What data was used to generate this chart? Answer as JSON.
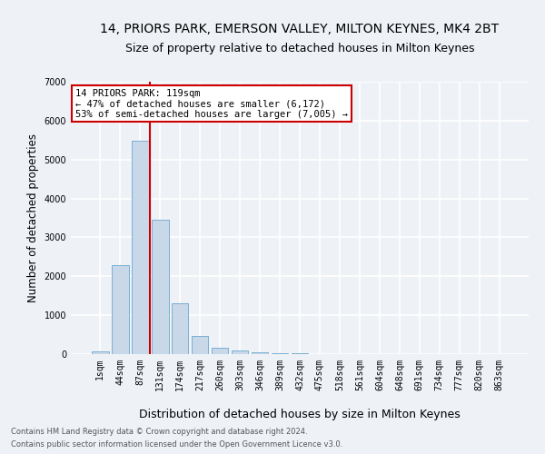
{
  "title": "14, PRIORS PARK, EMERSON VALLEY, MILTON KEYNES, MK4 2BT",
  "subtitle": "Size of property relative to detached houses in Milton Keynes",
  "xlabel": "Distribution of detached houses by size in Milton Keynes",
  "ylabel": "Number of detached properties",
  "bar_color": "#c8d8e8",
  "bar_edge_color": "#7aafd4",
  "categories": [
    "1sqm",
    "44sqm",
    "87sqm",
    "131sqm",
    "174sqm",
    "217sqm",
    "260sqm",
    "303sqm",
    "346sqm",
    "389sqm",
    "432sqm",
    "475sqm",
    "518sqm",
    "561sqm",
    "604sqm",
    "648sqm",
    "691sqm",
    "734sqm",
    "777sqm",
    "820sqm",
    "863sqm"
  ],
  "values": [
    80,
    2280,
    5480,
    3450,
    1310,
    470,
    160,
    90,
    55,
    35,
    20,
    0,
    0,
    0,
    0,
    0,
    0,
    0,
    0,
    0,
    0
  ],
  "ylim": [
    0,
    7000
  ],
  "yticks": [
    0,
    1000,
    2000,
    3000,
    4000,
    5000,
    6000,
    7000
  ],
  "vline_color": "#cc0000",
  "vline_pos": 2.48,
  "annotation_text": "14 PRIORS PARK: 119sqm\n← 47% of detached houses are smaller (6,172)\n53% of semi-detached houses are larger (7,005) →",
  "annotation_box_color": "#ffffff",
  "annotation_box_edge_color": "#cc0000",
  "footer_line1": "Contains HM Land Registry data © Crown copyright and database right 2024.",
  "footer_line2": "Contains public sector information licensed under the Open Government Licence v3.0.",
  "background_color": "#eef2f7",
  "grid_color": "#ffffff",
  "title_fontsize": 10,
  "subtitle_fontsize": 9,
  "tick_fontsize": 7,
  "ylabel_fontsize": 8.5,
  "xlabel_fontsize": 9,
  "footer_fontsize": 6,
  "annotation_fontsize": 7.5
}
